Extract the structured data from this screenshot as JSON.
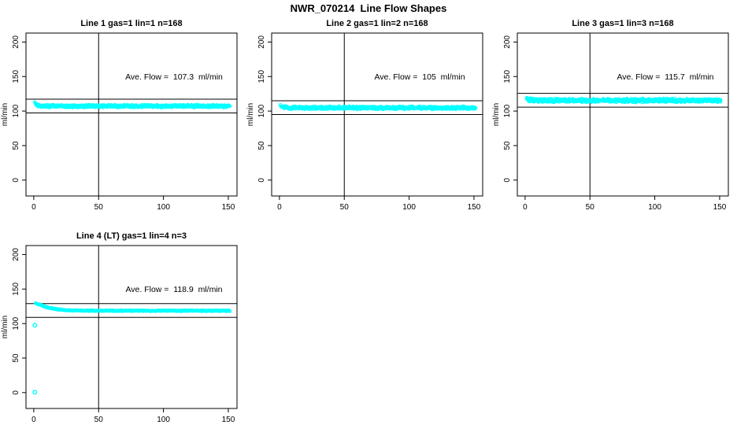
{
  "page_title": "NWR_070214  Line Flow Shapes",
  "colors": {
    "background": "#ffffff",
    "points": "#00ffff",
    "axis": "#000000",
    "text": "#000000"
  },
  "chart_data": {
    "type": "scatter",
    "title": "NWR_070214  Line Flow Shapes",
    "layout": {
      "rows": 2,
      "cols": 3,
      "filled_cells": [
        [
          0,
          0
        ],
        [
          0,
          1
        ],
        [
          0,
          2
        ],
        [
          1,
          0
        ]
      ],
      "grid": "off"
    },
    "xlim": [
      -6,
      156.7
    ],
    "ylim": [
      -23,
      213
    ],
    "xticks": [
      0,
      50,
      100,
      150
    ],
    "yticks": [
      0,
      50,
      100,
      150,
      200
    ],
    "ylabel": "ml/min",
    "panels": [
      {
        "title": "Line 1 gas=1 lin=1 n=168",
        "annotation": "Ave. Flow =  107.3  ml/min",
        "ave_flow": 107.3,
        "vline_x": 50,
        "hlines": [
          117.3,
          97.3
        ],
        "band": {
          "x_start": 1,
          "x_end": 151,
          "y_settle": 107.2,
          "amp": 7,
          "tau": 2,
          "pexp": 1,
          "half_width": 2.4,
          "n": 700
        },
        "outliers": [],
        "seed": 101
      },
      {
        "title": "Line 2 gas=1 lin=2 n=168",
        "annotation": "Ave. Flow =  105  ml/min",
        "ave_flow": 105,
        "vline_x": 50,
        "hlines": [
          115,
          95
        ],
        "band": {
          "x_start": 1,
          "x_end": 151,
          "y_settle": 104.7,
          "amp": 6,
          "tau": 1.6,
          "pexp": 1,
          "half_width": 2.4,
          "n": 700
        },
        "outliers": [],
        "seed": 202
      },
      {
        "title": "Line 3 gas=1 lin=3 n=168",
        "annotation": "Ave. Flow =  115.7  ml/min",
        "ave_flow": 115.7,
        "vline_x": 50,
        "hlines": [
          125.7,
          105.7
        ],
        "band": {
          "x_start": 1,
          "x_end": 151,
          "y_settle": 115.4,
          "amp": 7,
          "tau": 1.8,
          "pexp": 1,
          "half_width": 3.0,
          "n": 750
        },
        "outliers": [],
        "seed": 303
      },
      {
        "title": "Line 4 (LT) gas=1 lin=4 n=3",
        "annotation": "Ave. Flow =  118.9  ml/min",
        "ave_flow": 118.9,
        "vline_x": 50,
        "hlines": [
          128.9,
          108.9
        ],
        "band": {
          "x_start": 1.5,
          "x_end": 151,
          "y_settle": 118.6,
          "amp": 11.5,
          "tau": 12,
          "pexp": 1.3,
          "half_width": 0.9,
          "n": 480
        },
        "outliers": [
          [
            0.8,
            97.5
          ],
          [
            0.8,
            0.5
          ]
        ],
        "seed": 404
      }
    ]
  }
}
